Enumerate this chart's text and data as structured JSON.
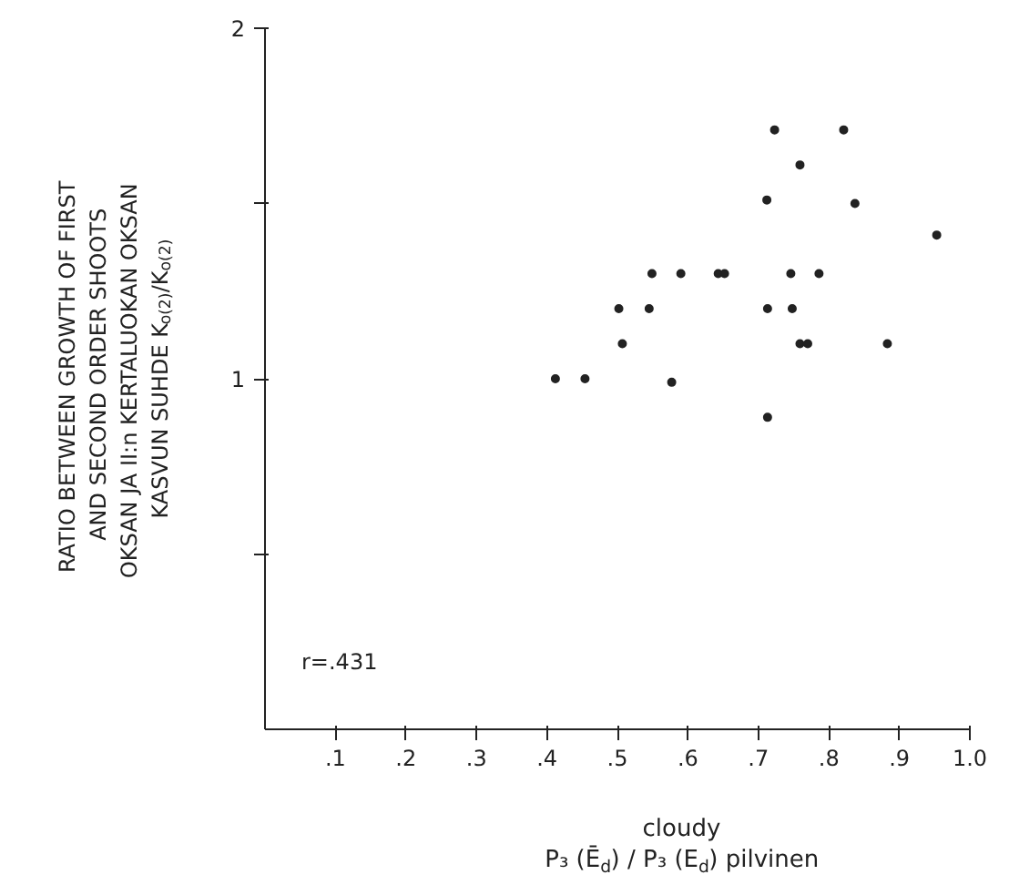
{
  "chart_data": {
    "type": "scatter",
    "xlabel": "cloudy\nP₃ (Ē$_{d}$) / P₃ (E$_{d}$) pilvinen",
    "ylabel": "RATIO BETWEEN GROWTH OF FIRST\nAND SECOND ORDER SHOOTS\nOKSAN JA II:n KERTALUOKAN OKSAN\nKASVUN SUHDE K$_{o(2)}$/K$_{o(2)}$",
    "annotations": [
      "r=.431"
    ],
    "x": [
      0.723,
      0.821,
      0.759,
      0.712,
      0.837,
      0.953,
      0.549,
      0.59,
      0.643,
      0.652,
      0.746,
      0.786,
      0.502,
      0.545,
      0.713,
      0.748,
      0.507,
      0.759,
      0.77,
      0.883,
      0.412,
      0.454,
      0.577,
      0.713
    ],
    "series": [
      {
        "color": "#222222",
        "values": [
          1.71,
          1.71,
          1.61,
          1.51,
          1.5,
          1.41,
          1.3,
          1.3,
          1.3,
          1.3,
          1.3,
          1.3,
          1.2,
          1.2,
          1.2,
          1.2,
          1.1,
          1.1,
          1.1,
          1.1,
          1.0,
          1.0,
          0.99,
          0.89
        ]
      }
    ],
    "xlim": [
      0,
      1.0
    ],
    "ylim": [
      0,
      2
    ],
    "xticks": [
      {
        "value": 0.1,
        "label": ".1"
      },
      {
        "value": 0.2,
        "label": ".2"
      },
      {
        "value": 0.3,
        "label": ".3"
      },
      {
        "value": 0.4,
        "label": ".4"
      },
      {
        "value": 0.5,
        "label": ".5"
      },
      {
        "value": 0.6,
        "label": ".6"
      },
      {
        "value": 0.7,
        "label": ".7"
      },
      {
        "value": 0.8,
        "label": ".8"
      },
      {
        "value": 0.9,
        "label": ".9"
      },
      {
        "value": 1.0,
        "label": "1.0"
      }
    ],
    "yticks": [
      {
        "value": 0.5,
        "label": null
      },
      1,
      {
        "value": 1.5,
        "label": null
      },
      2
    ],
    "marker": "circle"
  }
}
